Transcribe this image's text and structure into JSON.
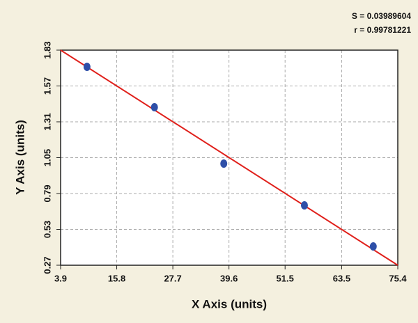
{
  "chart_data": {
    "type": "scatter",
    "x_label": "X Axis (units)",
    "y_label": "Y Axis (units)",
    "annotations": [
      "S = 0.03989604",
      "r = 0.99781221"
    ],
    "x": [
      9.5,
      23.8,
      38.5,
      55.6,
      70.2
    ],
    "y": [
      1.709,
      1.416,
      1.007,
      0.704,
      0.406
    ],
    "color": "#2e4fa8",
    "fit_line": {
      "x": [
        3.9,
        75.4
      ],
      "y": [
        1.83,
        0.27
      ],
      "color": "#e0201b"
    },
    "xlim": [
      3.9,
      75.4
    ],
    "xticks": [
      3.9,
      15.8,
      27.7,
      39.6,
      51.5,
      63.5,
      75.4
    ],
    "ylim": [
      0.27,
      1.83
    ],
    "yticks": [
      0.27,
      0.53,
      0.79,
      1.05,
      1.31,
      1.57,
      1.83
    ],
    "grid": true
  }
}
